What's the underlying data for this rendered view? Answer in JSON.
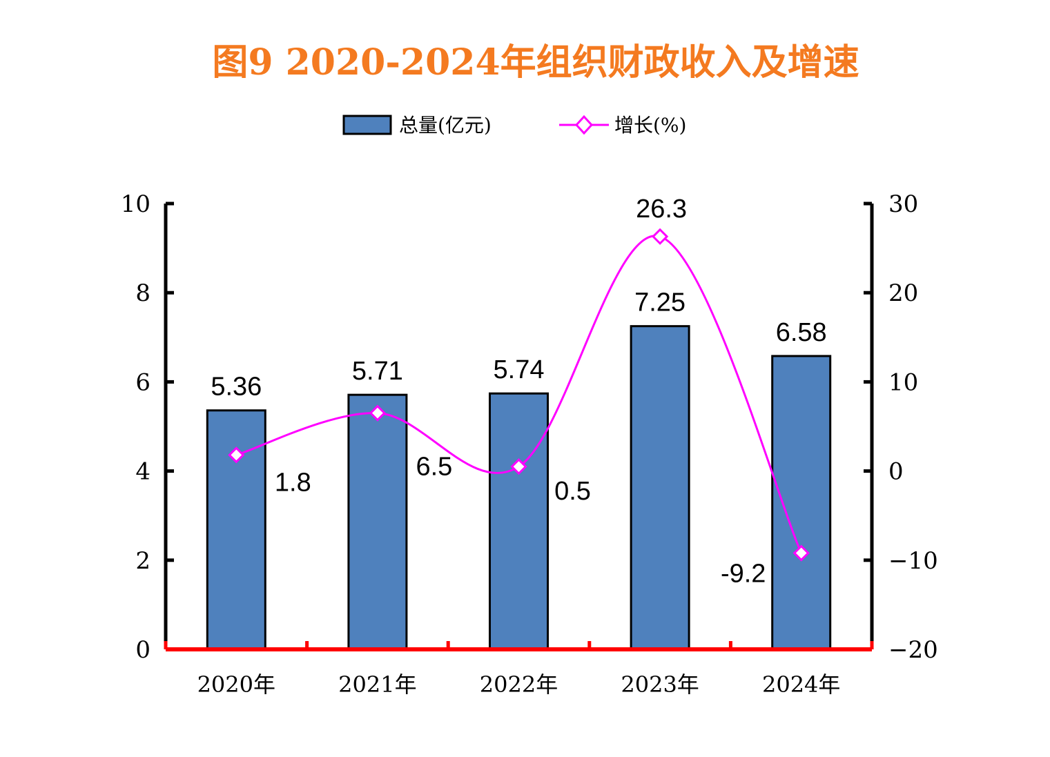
{
  "chart_data": {
    "type": "bar",
    "title": "图9   2020-2024年组织财政收入及增速",
    "categories": [
      "2020年",
      "2021年",
      "2022年",
      "2023年",
      "2024年"
    ],
    "legend_placement": "top-center",
    "grid": false,
    "y_left": {
      "min": 0,
      "max": 10,
      "ticks": [
        0,
        2,
        4,
        6,
        8,
        10
      ]
    },
    "y_right": {
      "min": -20,
      "max": 30,
      "ticks": [
        -20,
        -10,
        0,
        10,
        20,
        30
      ]
    },
    "series": [
      {
        "name": "总量(亿元)",
        "type": "bar",
        "axis": "left",
        "color": "#4F81BD",
        "values": [
          5.36,
          5.71,
          5.74,
          7.25,
          6.58
        ],
        "labels": [
          "5.36",
          "5.71",
          "5.74",
          "7.25",
          "6.58"
        ]
      },
      {
        "name": "增长(%)",
        "type": "line",
        "axis": "right",
        "color": "#FF00FF",
        "marker": "diamond",
        "smooth": true,
        "values": [
          1.8,
          6.5,
          0.5,
          26.3,
          -9.2
        ],
        "labels": [
          "1.8",
          "6.5",
          "0.5",
          "26.3",
          "-9.2"
        ]
      }
    ],
    "colors": {
      "title": "#F47A20",
      "axis": "#000000",
      "baseline": "#FF0000"
    }
  }
}
